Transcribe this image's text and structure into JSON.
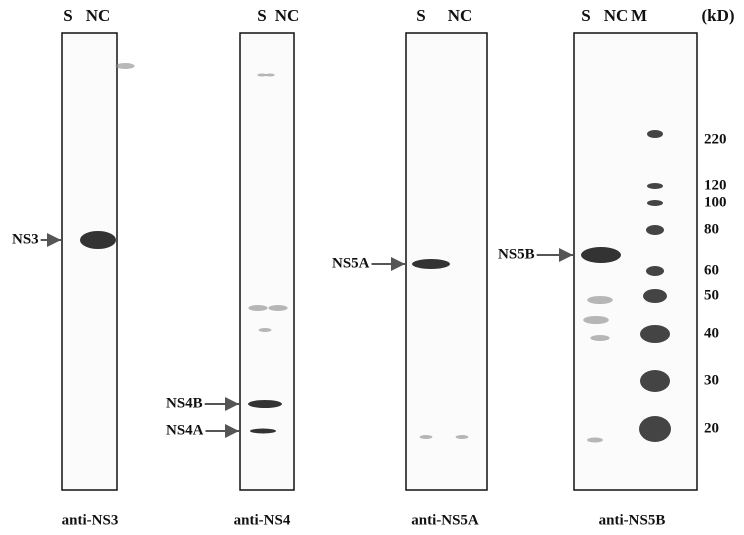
{
  "panels": [
    {
      "lanes": [
        "S",
        "NC"
      ],
      "antibody": "anti-NS3",
      "bands": [
        {
          "label": "NS3"
        }
      ]
    },
    {
      "lanes": [
        "S",
        "NC"
      ],
      "antibody": "anti-NS4",
      "bands": [
        {
          "label": "NS4B"
        },
        {
          "label": "NS4A"
        }
      ]
    },
    {
      "lanes": [
        "S",
        "NC"
      ],
      "antibody": "anti-NS5A",
      "bands": [
        {
          "label": "NS5A"
        }
      ]
    },
    {
      "lanes": [
        "S",
        "NC",
        "M"
      ],
      "antibody": "anti-NS5B",
      "bands": [
        {
          "label": "NS5B"
        }
      ]
    }
  ],
  "marker": {
    "unit": "(kD)",
    "sizes": [
      "220",
      "120",
      "100",
      "80",
      "60",
      "50",
      "40",
      "30",
      "20"
    ]
  }
}
